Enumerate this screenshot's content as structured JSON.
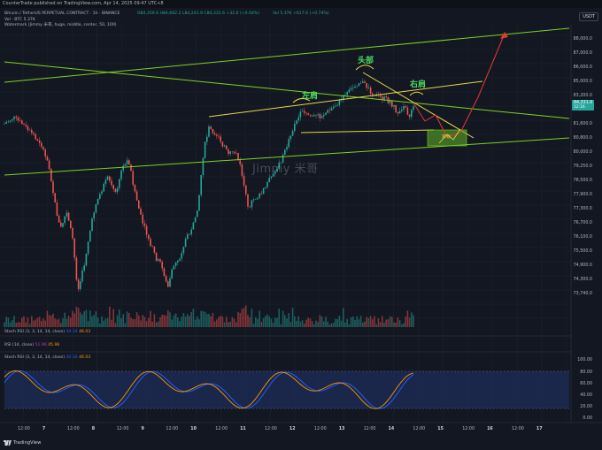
{
  "publish_bar": {
    "text": "CounterTrade published on TradingView.com, Apr 14, 2025 09:47 UTC+8"
  },
  "legend": {
    "symbol_line": "Bitcoin / TetherUS PERPETUAL CONTRACT · 1h · BINANCE",
    "ohlc": "O84,359.6 H84,662.2 L84,241.9 C84,331.6 +32.6 (+0.04%)",
    "vol_line": "Vol · BTC  5.37K",
    "watermark_line": "Watermark (Jimmy 米哥, huge, middle, center, 50, 100)",
    "vol_right": "Vol 5.37K  +617.6 (+0.74%)"
  },
  "currency_button": "USDT",
  "price_axis": {
    "labels": [
      "88,000.0",
      "87,000.0",
      "86,000.0",
      "85,000.0",
      "83,200.0",
      "82,400.0",
      "81,600.0",
      "80,800.0",
      "80,000.0",
      "79,250.0",
      "78,500.0",
      "77,900.0",
      "77,300.0",
      "76,700.0",
      "76,100.0",
      "75,500.0",
      "74,900.0",
      "74,300.0",
      "73,740.0"
    ],
    "current_price": "84,331.6",
    "current_time": "12:16",
    "current_price_color": "#26a69a"
  },
  "annotations": {
    "left_shoulder": "左肩",
    "head": "头部",
    "right_shoulder": "右肩",
    "watermark": "Jimmy 米哥",
    "target_box_text": "目标"
  },
  "rsi_pane": {
    "label": "RSI (14, close)",
    "value1": "51.96",
    "value2": "45.96"
  },
  "stoch_pane_top": {
    "label": "Stoch RSI (3, 3, 14, 14, close)",
    "value1": "30.34",
    "value2": "46.03"
  },
  "stoch_pane": {
    "label": "Stoch RSI (3, 3, 14, 14, close)",
    "value1": "30.34",
    "value2": "46.03",
    "axis": [
      "100.00",
      "80.00",
      "60.00",
      "40.00",
      "20.00",
      "0.00"
    ]
  },
  "time_axis": [
    "12:00",
    "7",
    "12:00",
    "8",
    "12:00",
    "9",
    "12:00",
    "10",
    "12:00",
    "11",
    "12:00",
    "12",
    "12:00",
    "13",
    "12:00",
    "14",
    "12:00",
    "15",
    "12:00",
    "16",
    "12:00",
    "17"
  ],
  "tradingview": "TradingView",
  "colors": {
    "up": "#26a69a",
    "down": "#ef5350",
    "channel": "#7ed321",
    "trendline": "#e8d84a",
    "projection": "#e53935",
    "rsi_band": "#1e2d5a"
  }
}
